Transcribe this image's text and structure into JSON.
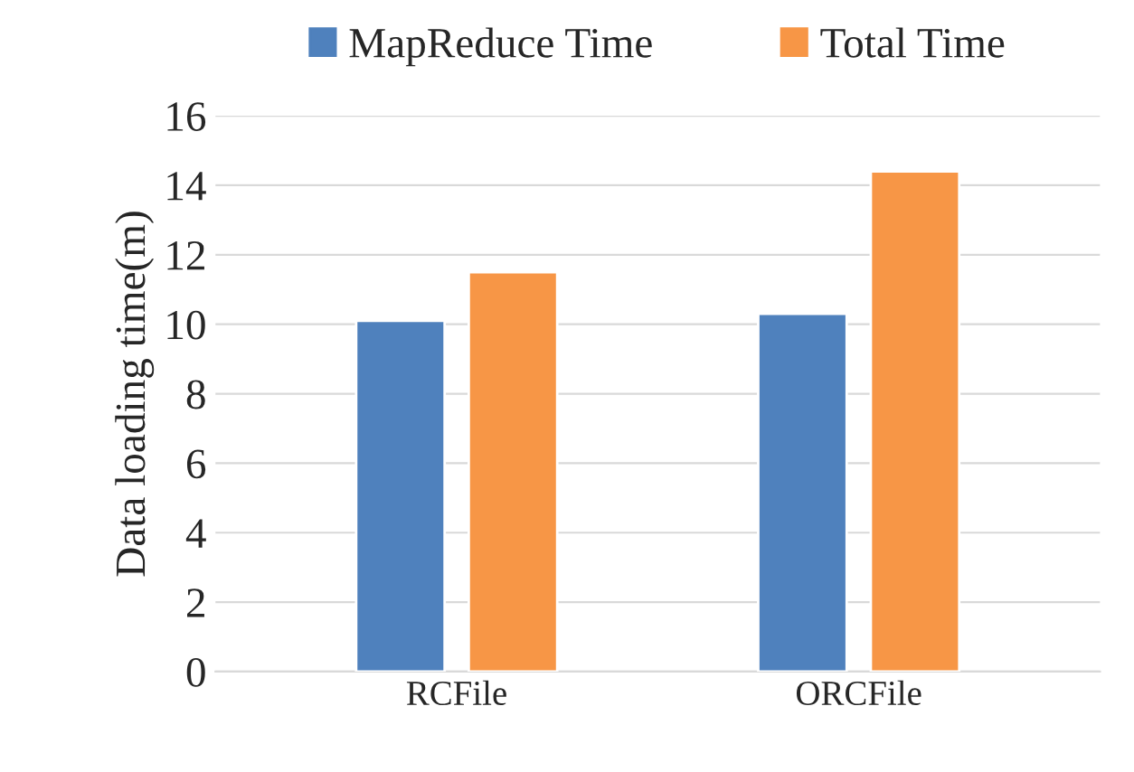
{
  "chart_data": {
    "type": "bar",
    "ylabel": "Data loading time(m)",
    "categories": [
      "RCFile",
      "ORCFile"
    ],
    "series": [
      {
        "name": "MapReduce Time",
        "color": "#4f81bd",
        "values": [
          10.1,
          10.3
        ]
      },
      {
        "name": "Total Time",
        "color": "#f79646",
        "values": [
          11.5,
          14.4
        ]
      }
    ],
    "ylim": [
      0,
      16
    ],
    "yticks": [
      0,
      2,
      4,
      6,
      8,
      10,
      12,
      14,
      16
    ],
    "grid": "y",
    "legend": "top"
  }
}
